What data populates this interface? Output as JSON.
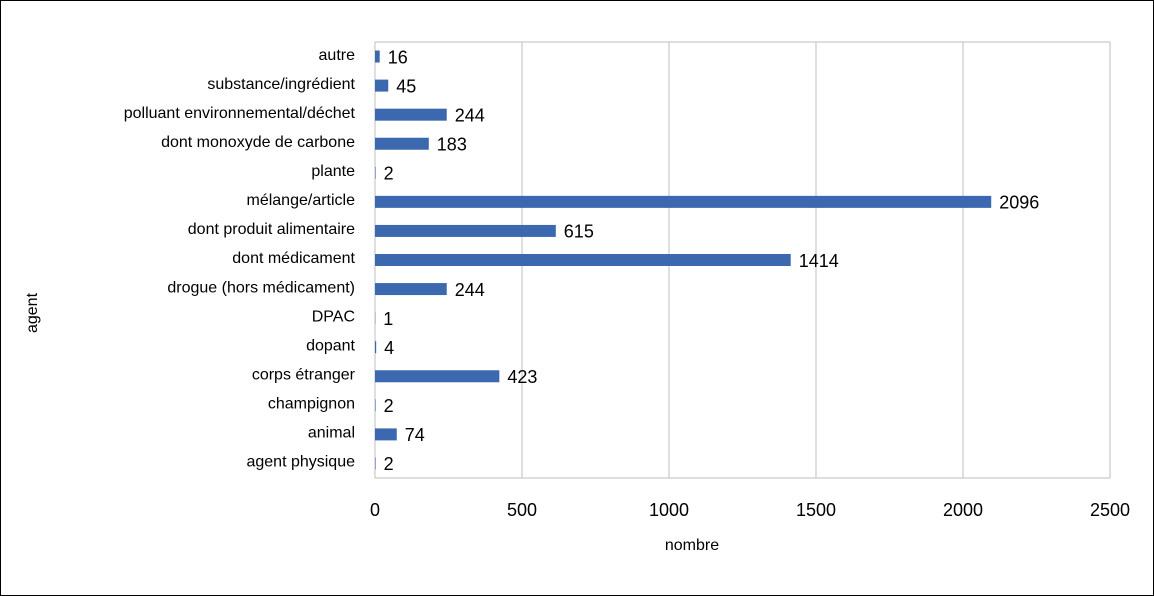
{
  "chart_data": {
    "type": "bar",
    "orientation": "horizontal",
    "x_label": "nombre",
    "y_label": "agent",
    "categories": [
      "autre",
      "substance/ingrédient",
      "polluant environnemental/déchet",
      "dont monoxyde de carbone",
      "plante",
      "mélange/article",
      "dont produit alimentaire",
      "dont médicament",
      "drogue (hors médicament)",
      "DPAC",
      "dopant",
      "corps étranger",
      "champignon",
      "animal",
      "agent physique"
    ],
    "values": [
      16,
      45,
      244,
      183,
      2,
      2096,
      615,
      1414,
      244,
      1,
      4,
      423,
      2,
      74,
      2
    ],
    "color": "#3b68ae",
    "xlim": [
      0,
      2500
    ],
    "xticks": [
      0,
      500,
      1000,
      1500,
      2000,
      2500
    ],
    "grid": true
  }
}
